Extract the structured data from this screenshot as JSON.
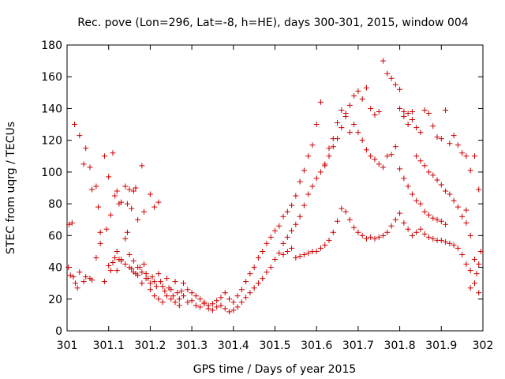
{
  "chart_data": {
    "type": "scatter",
    "title": "Rec. pove (Lon=296, Lat=-8, h=HE), days 300-301, 2015, window 004",
    "xlabel": "GPS time / Days of year 2015",
    "ylabel": "STEC from uqrg / TECUs",
    "xlim": [
      301,
      302
    ],
    "ylim": [
      0,
      180
    ],
    "x_ticks": [
      "301",
      "301.1",
      "301.2",
      "301.3",
      "301.4",
      "301.5",
      "301.6",
      "301.7",
      "301.8",
      "301.9",
      "302"
    ],
    "y_ticks": [
      "0",
      "20",
      "40",
      "60",
      "80",
      "100",
      "120",
      "140",
      "160",
      "180"
    ],
    "marker": "+",
    "color": "#cc0000",
    "grid": false,
    "legend": "none",
    "points": [
      [
        301.005,
        67
      ],
      [
        301.012,
        68
      ],
      [
        301.018,
        130
      ],
      [
        301.03,
        123
      ],
      [
        301.04,
        105
      ],
      [
        301.045,
        115
      ],
      [
        301.055,
        103
      ],
      [
        301.06,
        89
      ],
      [
        301.07,
        91
      ],
      [
        301.075,
        78
      ],
      [
        301.08,
        62
      ],
      [
        301.09,
        110
      ],
      [
        301.095,
        64
      ],
      [
        301.1,
        97
      ],
      [
        301.105,
        73
      ],
      [
        301.11,
        112
      ],
      [
        301.115,
        85
      ],
      [
        301.12,
        88
      ],
      [
        301.125,
        80
      ],
      [
        301.13,
        81
      ],
      [
        301.14,
        91
      ],
      [
        301.145,
        80
      ],
      [
        301.15,
        89
      ],
      [
        301.155,
        77
      ],
      [
        301.16,
        88
      ],
      [
        301.165,
        90
      ],
      [
        301.17,
        70
      ],
      [
        301.18,
        104
      ],
      [
        301.185,
        75
      ],
      [
        301.2,
        86
      ],
      [
        301.21,
        78
      ],
      [
        301.22,
        81
      ],
      [
        301.003,
        40
      ],
      [
        301.008,
        35
      ],
      [
        301.015,
        34
      ],
      [
        301.02,
        30
      ],
      [
        301.025,
        27
      ],
      [
        301.03,
        37
      ],
      [
        301.04,
        31
      ],
      [
        301.045,
        34
      ],
      [
        301.055,
        33
      ],
      [
        301.06,
        32
      ],
      [
        301.07,
        46
      ],
      [
        301.08,
        55
      ],
      [
        301.09,
        31
      ],
      [
        301.1,
        41
      ],
      [
        301.105,
        38
      ],
      [
        301.11,
        43
      ],
      [
        301.115,
        46
      ],
      [
        301.12,
        50
      ],
      [
        301.125,
        45
      ],
      [
        301.13,
        44
      ],
      [
        301.14,
        58
      ],
      [
        301.145,
        62
      ],
      [
        301.15,
        40
      ],
      [
        301.155,
        39
      ],
      [
        301.16,
        44
      ],
      [
        301.165,
        36
      ],
      [
        301.17,
        40
      ],
      [
        301.175,
        40
      ],
      [
        301.18,
        37
      ],
      [
        301.185,
        42
      ],
      [
        301.19,
        36
      ],
      [
        301.195,
        33
      ],
      [
        301.2,
        30
      ],
      [
        301.205,
        34
      ],
      [
        301.21,
        31
      ],
      [
        301.215,
        28
      ],
      [
        301.22,
        36
      ],
      [
        301.225,
        31
      ],
      [
        301.23,
        28
      ],
      [
        301.235,
        25
      ],
      [
        301.24,
        33
      ],
      [
        301.245,
        27
      ],
      [
        301.25,
        26
      ],
      [
        301.255,
        22
      ],
      [
        301.26,
        31
      ],
      [
        301.265,
        24
      ],
      [
        301.27,
        20
      ],
      [
        301.275,
        25
      ],
      [
        301.12,
        38
      ],
      [
        301.13,
        45
      ],
      [
        301.14,
        42
      ],
      [
        301.15,
        48
      ],
      [
        301.16,
        37
      ],
      [
        301.17,
        35
      ],
      [
        301.18,
        30
      ],
      [
        301.19,
        33
      ],
      [
        301.2,
        26
      ],
      [
        301.21,
        22
      ],
      [
        301.22,
        20
      ],
      [
        301.23,
        18
      ],
      [
        301.24,
        22
      ],
      [
        301.25,
        20
      ],
      [
        301.26,
        18
      ],
      [
        301.27,
        16
      ],
      [
        301.28,
        22
      ],
      [
        301.29,
        18
      ],
      [
        301.3,
        19
      ],
      [
        301.31,
        16
      ],
      [
        301.32,
        15
      ],
      [
        301.33,
        17
      ],
      [
        301.34,
        14
      ],
      [
        301.35,
        13
      ],
      [
        301.36,
        15
      ],
      [
        301.37,
        16
      ],
      [
        301.38,
        14
      ],
      [
        301.39,
        12
      ],
      [
        301.4,
        13
      ],
      [
        301.41,
        15
      ],
      [
        301.42,
        18
      ],
      [
        301.43,
        21
      ],
      [
        301.44,
        24
      ],
      [
        301.45,
        27
      ],
      [
        301.46,
        30
      ],
      [
        301.47,
        33
      ],
      [
        301.48,
        37
      ],
      [
        301.49,
        40
      ],
      [
        301.5,
        45
      ],
      [
        301.51,
        49
      ],
      [
        301.28,
        30
      ],
      [
        301.29,
        26
      ],
      [
        301.3,
        24
      ],
      [
        301.31,
        22
      ],
      [
        301.32,
        20
      ],
      [
        301.33,
        18
      ],
      [
        301.34,
        16
      ],
      [
        301.35,
        17
      ],
      [
        301.36,
        19
      ],
      [
        301.37,
        21
      ],
      [
        301.38,
        24
      ],
      [
        301.39,
        20
      ],
      [
        301.4,
        18
      ],
      [
        301.41,
        22
      ],
      [
        301.42,
        26
      ],
      [
        301.43,
        31
      ],
      [
        301.44,
        36
      ],
      [
        301.45,
        40
      ],
      [
        301.46,
        46
      ],
      [
        301.47,
        50
      ],
      [
        301.48,
        55
      ],
      [
        301.49,
        59
      ],
      [
        301.5,
        63
      ],
      [
        301.51,
        66
      ],
      [
        301.52,
        72
      ],
      [
        301.53,
        75
      ],
      [
        301.54,
        79
      ],
      [
        301.55,
        85
      ],
      [
        301.56,
        94
      ],
      [
        301.57,
        101
      ],
      [
        301.58,
        110
      ],
      [
        301.59,
        117
      ],
      [
        301.6,
        130
      ],
      [
        301.61,
        144
      ],
      [
        301.62,
        104
      ],
      [
        301.63,
        110
      ],
      [
        301.64,
        116
      ],
      [
        301.65,
        121
      ],
      [
        301.66,
        128
      ],
      [
        301.67,
        135
      ],
      [
        301.68,
        142
      ],
      [
        301.69,
        148
      ],
      [
        301.7,
        151
      ],
      [
        301.71,
        146
      ],
      [
        301.72,
        153
      ],
      [
        301.73,
        140
      ],
      [
        301.74,
        136
      ],
      [
        301.75,
        138
      ],
      [
        301.76,
        170
      ],
      [
        301.77,
        162
      ],
      [
        301.78,
        159
      ],
      [
        301.79,
        155
      ],
      [
        301.8,
        152
      ],
      [
        301.81,
        138
      ],
      [
        301.82,
        137
      ],
      [
        301.83,
        133
      ],
      [
        301.52,
        55
      ],
      [
        301.53,
        59
      ],
      [
        301.54,
        63
      ],
      [
        301.55,
        67
      ],
      [
        301.56,
        72
      ],
      [
        301.57,
        79
      ],
      [
        301.58,
        86
      ],
      [
        301.59,
        91
      ],
      [
        301.6,
        96
      ],
      [
        301.61,
        100
      ],
      [
        301.62,
        105
      ],
      [
        301.63,
        115
      ],
      [
        301.64,
        121
      ],
      [
        301.65,
        131
      ],
      [
        301.66,
        139
      ],
      [
        301.67,
        137
      ],
      [
        301.68,
        125
      ],
      [
        301.69,
        130
      ],
      [
        301.7,
        125
      ],
      [
        301.71,
        120
      ],
      [
        301.72,
        114
      ],
      [
        301.73,
        110
      ],
      [
        301.74,
        108
      ],
      [
        301.75,
        105
      ],
      [
        301.76,
        103
      ],
      [
        301.77,
        110
      ],
      [
        301.78,
        111
      ],
      [
        301.79,
        116
      ],
      [
        301.8,
        102
      ],
      [
        301.81,
        96
      ],
      [
        301.82,
        91
      ],
      [
        301.83,
        86
      ],
      [
        301.84,
        82
      ],
      [
        301.85,
        80
      ],
      [
        301.86,
        75
      ],
      [
        301.87,
        73
      ],
      [
        301.88,
        71
      ],
      [
        301.89,
        70
      ],
      [
        301.9,
        69
      ],
      [
        301.91,
        67
      ],
      [
        301.52,
        48
      ],
      [
        301.53,
        50
      ],
      [
        301.54,
        52
      ],
      [
        301.55,
        46
      ],
      [
        301.56,
        47
      ],
      [
        301.57,
        48
      ],
      [
        301.58,
        49
      ],
      [
        301.59,
        50
      ],
      [
        301.6,
        50
      ],
      [
        301.61,
        52
      ],
      [
        301.62,
        54
      ],
      [
        301.63,
        57
      ],
      [
        301.64,
        62
      ],
      [
        301.65,
        69
      ],
      [
        301.66,
        77
      ],
      [
        301.67,
        75
      ],
      [
        301.68,
        70
      ],
      [
        301.69,
        65
      ],
      [
        301.7,
        62
      ],
      [
        301.71,
        60
      ],
      [
        301.72,
        58
      ],
      [
        301.73,
        59
      ],
      [
        301.74,
        58
      ],
      [
        301.75,
        59
      ],
      [
        301.76,
        60
      ],
      [
        301.77,
        62
      ],
      [
        301.78,
        66
      ],
      [
        301.79,
        70
      ],
      [
        301.8,
        74
      ],
      [
        301.81,
        68
      ],
      [
        301.82,
        64
      ],
      [
        301.83,
        60
      ],
      [
        301.84,
        62
      ],
      [
        301.85,
        64
      ],
      [
        301.86,
        61
      ],
      [
        301.87,
        59
      ],
      [
        301.88,
        58
      ],
      [
        301.89,
        57
      ],
      [
        301.9,
        57
      ],
      [
        301.91,
        56
      ],
      [
        301.92,
        55
      ],
      [
        301.93,
        54
      ],
      [
        301.94,
        52
      ],
      [
        301.95,
        48
      ],
      [
        301.96,
        42
      ],
      [
        301.97,
        38
      ],
      [
        301.98,
        30
      ],
      [
        301.99,
        24
      ],
      [
        301.8,
        140
      ],
      [
        301.81,
        135
      ],
      [
        301.82,
        130
      ],
      [
        301.83,
        138
      ],
      [
        301.84,
        128
      ],
      [
        301.85,
        125
      ],
      [
        301.86,
        139
      ],
      [
        301.87,
        137
      ],
      [
        301.88,
        129
      ],
      [
        301.89,
        122
      ],
      [
        301.9,
        121
      ],
      [
        301.91,
        139
      ],
      [
        301.92,
        118
      ],
      [
        301.93,
        123
      ],
      [
        301.94,
        117
      ],
      [
        301.95,
        112
      ],
      [
        301.96,
        110
      ],
      [
        301.97,
        101
      ],
      [
        301.98,
        110
      ],
      [
        301.99,
        89
      ],
      [
        301.84,
        110
      ],
      [
        301.85,
        107
      ],
      [
        301.86,
        104
      ],
      [
        301.87,
        100
      ],
      [
        301.88,
        98
      ],
      [
        301.89,
        95
      ],
      [
        301.9,
        92
      ],
      [
        301.91,
        88
      ],
      [
        301.92,
        86
      ],
      [
        301.93,
        82
      ],
      [
        301.94,
        78
      ],
      [
        301.95,
        72
      ],
      [
        301.96,
        68
      ],
      [
        301.97,
        60
      ],
      [
        301.98,
        45
      ],
      [
        301.99,
        42
      ],
      [
        301.995,
        50
      ],
      [
        301.97,
        27
      ],
      [
        301.985,
        36
      ],
      [
        301.96,
        76
      ]
    ]
  }
}
